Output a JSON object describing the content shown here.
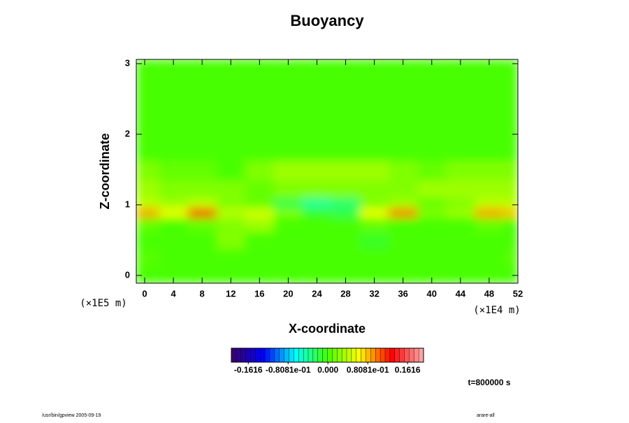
{
  "chart_data": {
    "type": "heatmap",
    "title": "Buoyancy",
    "x_label": "X-coordinate",
    "y_label": "Z-coordinate",
    "x_unit": "(×1E4 m)",
    "y_unit": "(×1E5 m)",
    "x": [
      0,
      4,
      8,
      12,
      16,
      20,
      24,
      28,
      32,
      36,
      40,
      44,
      48,
      52
    ],
    "y": [
      0,
      0.25,
      0.5,
      0.75,
      0.9,
      1.0,
      1.2,
      1.5,
      1.75,
      2,
      2.5,
      3
    ],
    "values": [
      [
        0,
        0,
        0,
        0,
        0,
        0,
        0,
        0,
        0,
        0,
        0,
        0,
        0,
        0
      ],
      [
        0.005,
        0,
        0,
        0,
        0,
        0,
        0,
        0,
        0,
        0,
        0,
        0,
        0,
        0.005
      ],
      [
        0,
        0,
        0,
        0.02,
        0,
        0,
        0,
        0,
        -0.01,
        0,
        0,
        0,
        0,
        0
      ],
      [
        0.01,
        0,
        0.01,
        0.02,
        0.03,
        0,
        0,
        0,
        0.01,
        0,
        0,
        0,
        0.01,
        0
      ],
      [
        0.09,
        0.06,
        0.13,
        0.04,
        0.05,
        0.02,
        -0.01,
        -0.02,
        0.06,
        0.1,
        0.02,
        0.03,
        0.09,
        0.08
      ],
      [
        0.04,
        0.03,
        0.04,
        0.02,
        0.01,
        -0.02,
        -0.04,
        -0.03,
        0.02,
        0.03,
        0.01,
        0.02,
        0.04,
        0.04
      ],
      [
        0.03,
        0.02,
        0.02,
        0.02,
        0.01,
        0.02,
        0.02,
        0.02,
        0.02,
        0.02,
        0.03,
        0.03,
        0.03,
        0.03
      ],
      [
        0.02,
        0.01,
        0.01,
        0,
        0.02,
        0.03,
        0.03,
        0.03,
        0.03,
        0.02,
        0.01,
        0.02,
        0.02,
        0.02
      ],
      [
        0,
        0,
        0,
        0,
        0,
        0,
        0,
        0,
        0,
        0,
        0,
        0,
        0,
        0
      ],
      [
        0,
        0,
        0,
        0,
        0,
        0,
        0,
        0,
        0,
        0,
        0,
        0,
        0,
        0
      ],
      [
        0,
        0,
        0,
        0,
        0,
        0,
        0,
        0,
        0,
        0,
        0,
        0,
        0,
        0
      ],
      [
        0,
        0,
        0,
        0,
        0,
        0,
        0,
        0,
        0,
        0,
        0,
        0,
        0,
        0
      ]
    ],
    "xlim": [
      -1.17,
      52
    ],
    "ylim": [
      -0.11,
      3.06
    ],
    "xticks": [
      0,
      4,
      8,
      12,
      16,
      20,
      24,
      28,
      32,
      36,
      40,
      44,
      48,
      52
    ],
    "yticks": [
      0,
      1,
      2,
      3
    ],
    "colormap": [
      "#3c0064",
      "#0000ff",
      "#00ffff",
      "#44ff00",
      "#ffff00",
      "#ff0000",
      "#ffb0b0"
    ],
    "colorbar_lim": [
      -0.196,
      0.194
    ],
    "colorbar_ticks": [
      -0.1616,
      {
        "value": -0.08081,
        "label": "-0.8081e-01"
      },
      {
        "value": 0,
        "label": "0.000"
      },
      {
        "value": 0.08081,
        "label": "0.8081e-01"
      },
      0.1616
    ],
    "time_label": "t=800000 s",
    "footer_left": "/usr/bin/gpview 2005-09-19",
    "footer_right": "arare-all"
  }
}
